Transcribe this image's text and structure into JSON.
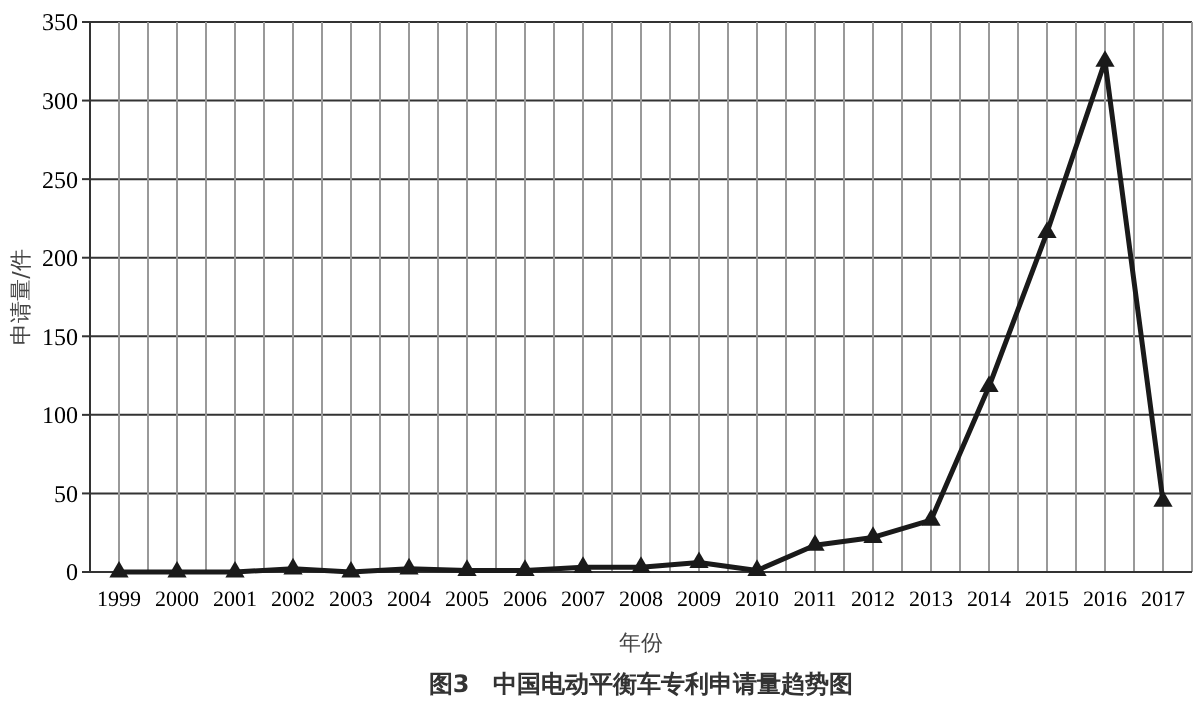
{
  "chart_data": {
    "type": "line",
    "title": "图3　中国电动平衡车专利申请量趋势图",
    "xlabel": "年份",
    "ylabel": "申请量/件",
    "categories": [
      "1999",
      "2000",
      "2001",
      "2002",
      "2003",
      "2004",
      "2005",
      "2006",
      "2007",
      "2008",
      "2009",
      "2010",
      "2011",
      "2012",
      "2013",
      "2014",
      "2015",
      "2016",
      "2017"
    ],
    "series": [
      {
        "color": "#1a1a1a",
        "values": [
          0,
          0,
          0,
          2,
          0,
          2,
          1,
          1,
          3,
          3,
          6,
          1,
          17,
          22,
          33,
          118,
          216,
          325,
          45
        ]
      }
    ],
    "ylim": [
      0,
      350
    ],
    "yticks": [
      0,
      50,
      100,
      150,
      200,
      250,
      300,
      350
    ],
    "grid": true,
    "marker": "triangle",
    "line_style": "solid"
  }
}
